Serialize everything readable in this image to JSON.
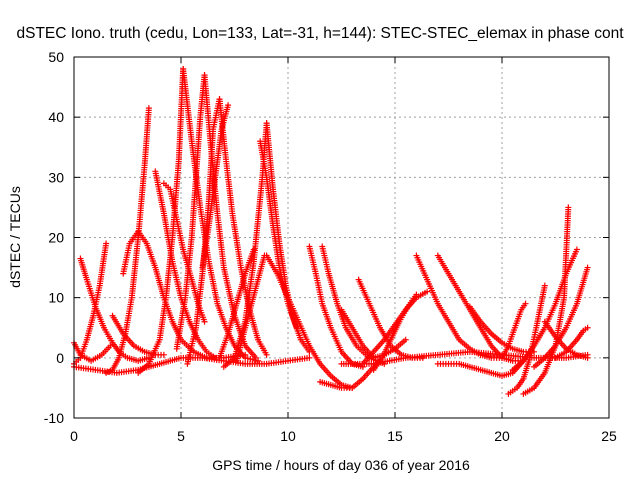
{
  "chart_data": {
    "type": "scatter",
    "title": "dSTEC Iono. truth (cedu, Lon=133, Lat=-31, h=144): STEC-STEC_elemax in phase cont",
    "xlabel": "GPS time / hours of day 036 of year 2016",
    "ylabel": "dSTEC  / TECUs",
    "xlim": [
      0,
      25
    ],
    "ylim": [
      -10,
      50
    ],
    "xticks": [
      "0",
      "5",
      "10",
      "15",
      "20",
      "25"
    ],
    "yticks": [
      "-10",
      "0",
      "10",
      "20",
      "30",
      "40",
      "50"
    ],
    "grid": true,
    "marker": "+",
    "color": "#ff0000",
    "series": [
      {
        "x": [
          0.0,
          0.3,
          0.8,
          1.3,
          1.7
        ],
        "y": [
          2.5,
          0.5,
          -0.5,
          0.5,
          2.0
        ]
      },
      {
        "x": [
          0.3,
          0.6,
          1.0,
          1.4,
          1.8,
          2.1,
          2.5,
          3.0,
          3.5
        ],
        "y": [
          16.5,
          13.0,
          8.5,
          5.0,
          2.5,
          1.0,
          0.0,
          -0.5,
          0.0
        ]
      },
      {
        "x": [
          0.0,
          0.3,
          0.6,
          0.9,
          1.2,
          1.5
        ],
        "y": [
          -1.0,
          0.0,
          3.0,
          7.0,
          12.0,
          19.0
        ]
      },
      {
        "x": [
          0.0,
          1.0,
          2.0,
          3.0,
          4.0,
          5.0,
          6.0,
          7.0,
          8.0,
          9.0,
          10.0,
          11.0
        ],
        "y": [
          -1.5,
          -2.0,
          -2.5,
          -2.0,
          -1.0,
          0.0,
          0.0,
          -0.5,
          -1.0,
          -1.0,
          -0.5,
          0.0
        ]
      },
      {
        "x": [
          1.5,
          1.8,
          2.1,
          2.4,
          2.7,
          3.0,
          3.3,
          3.5
        ],
        "y": [
          -2.5,
          -2.0,
          0.0,
          4.0,
          10.0,
          20.0,
          32.0,
          41.5
        ]
      },
      {
        "x": [
          1.8,
          2.3,
          2.8,
          3.3,
          3.8,
          4.2
        ],
        "y": [
          7.0,
          4.0,
          2.0,
          1.0,
          0.5,
          0.5
        ]
      },
      {
        "x": [
          2.3,
          2.6,
          3.0,
          3.4,
          3.8,
          4.2,
          4.6,
          5.0,
          5.6,
          6.2,
          7.0,
          8.0
        ],
        "y": [
          14.0,
          19.0,
          21.0,
          19.0,
          15.0,
          10.0,
          6.0,
          3.0,
          1.0,
          0.0,
          0.0,
          0.5
        ]
      },
      {
        "x": [
          3.8,
          4.2,
          4.6,
          5.0,
          5.4,
          5.8,
          6.2,
          6.6
        ],
        "y": [
          31.0,
          24.0,
          16.0,
          10.0,
          6.0,
          3.0,
          1.0,
          0.0
        ]
      },
      {
        "x": [
          3.0,
          3.5,
          4.0,
          4.3,
          4.6,
          4.9,
          5.1
        ],
        "y": [
          -2.5,
          -1.0,
          3.0,
          10.0,
          20.0,
          33.0,
          48.0
        ]
      },
      {
        "x": [
          5.1,
          5.5,
          5.9,
          6.3,
          6.7,
          7.1,
          7.5,
          8.0,
          8.6
        ],
        "y": [
          48.0,
          36.0,
          25.0,
          16.0,
          9.0,
          5.0,
          2.0,
          0.0,
          -0.5
        ]
      },
      {
        "x": [
          4.2,
          4.5,
          4.8,
          5.1,
          5.5,
          5.8,
          6.1
        ],
        "y": [
          29.0,
          28.0,
          23.0,
          18.0,
          13.0,
          9.0,
          6.0
        ]
      },
      {
        "x": [
          4.8,
          5.2,
          5.5,
          5.7,
          5.9,
          6.1
        ],
        "y": [
          1.5,
          10.0,
          20.0,
          30.0,
          40.0,
          47.0
        ]
      },
      {
        "x": [
          6.1,
          6.4,
          6.7,
          7.0,
          7.5,
          8.0,
          8.5
        ],
        "y": [
          47.0,
          35.0,
          24.0,
          15.0,
          7.0,
          2.0,
          0.0
        ]
      },
      {
        "x": [
          5.3,
          5.7,
          6.0,
          6.3,
          6.5,
          6.8
        ],
        "y": [
          -1.0,
          5.0,
          14.0,
          26.0,
          38.0,
          43.0
        ]
      },
      {
        "x": [
          6.8,
          7.1,
          7.4,
          7.8,
          8.2,
          8.6,
          9.0
        ],
        "y": [
          43.0,
          33.0,
          24.0,
          15.0,
          8.0,
          3.0,
          0.5
        ]
      },
      {
        "x": [
          6.0,
          6.3,
          6.6,
          6.9,
          7.2
        ],
        "y": [
          15.0,
          22.0,
          30.0,
          38.0,
          42.0
        ]
      },
      {
        "x": [
          7.0,
          7.5,
          8.0,
          8.4,
          8.8,
          9.0
        ],
        "y": [
          -1.5,
          0.0,
          6.0,
          16.0,
          30.0,
          39.0
        ]
      },
      {
        "x": [
          9.0,
          9.3,
          9.6,
          9.9,
          10.2,
          10.6,
          11.0
        ],
        "y": [
          39.0,
          28.0,
          19.0,
          12.0,
          7.0,
          3.0,
          1.0
        ]
      },
      {
        "x": [
          8.7,
          9.0,
          9.3,
          9.6,
          10.0,
          10.4
        ],
        "y": [
          36.0,
          30.0,
          22.0,
          15.0,
          9.0,
          5.0
        ]
      },
      {
        "x": [
          7.6,
          8.0,
          8.3,
          8.6,
          8.9
        ],
        "y": [
          -0.5,
          5.0,
          9.0,
          13.0,
          17.0
        ]
      },
      {
        "x": [
          6.8,
          7.2,
          7.6,
          8.0,
          8.4
        ],
        "y": [
          0.0,
          4.0,
          9.0,
          14.0,
          18.0
        ]
      },
      {
        "x": [
          9.0,
          9.5,
          10.0,
          10.5,
          11.0,
          11.5,
          12.0,
          12.5,
          13.0
        ],
        "y": [
          17.0,
          14.0,
          10.0,
          6.0,
          2.0,
          -1.0,
          -3.0,
          -4.5,
          -5.0
        ]
      },
      {
        "x": [
          11.0,
          11.3,
          11.6,
          12.0,
          12.5,
          13.0,
          13.5
        ],
        "y": [
          18.5,
          14.0,
          9.0,
          5.0,
          1.0,
          -1.0,
          -1.5
        ]
      },
      {
        "x": [
          11.6,
          11.9,
          12.3,
          12.7,
          13.2,
          13.8,
          14.5
        ],
        "y": [
          18.5,
          14.0,
          9.0,
          5.0,
          2.0,
          0.0,
          -1.0
        ]
      },
      {
        "x": [
          11.5,
          12.0,
          12.5,
          13.0,
          13.5,
          14.0,
          14.4
        ],
        "y": [
          -4.0,
          -4.5,
          -5.0,
          -5.0,
          -3.5,
          -1.5,
          0.0
        ]
      },
      {
        "x": [
          12.5,
          13.0,
          13.5,
          14.0,
          14.5,
          15.0,
          15.5
        ],
        "y": [
          8.0,
          5.0,
          2.0,
          0.0,
          0.5,
          1.5,
          3.0
        ]
      },
      {
        "x": [
          13.3,
          13.8,
          14.3,
          14.8,
          15.3,
          15.8,
          16.3
        ],
        "y": [
          13.0,
          9.0,
          5.0,
          2.0,
          0.5,
          0.0,
          0.0
        ]
      },
      {
        "x": [
          13.5,
          14.0,
          14.5,
          15.0,
          15.5,
          16.0,
          16.5
        ],
        "y": [
          -1.0,
          1.0,
          3.0,
          5.5,
          8.0,
          10.0,
          11.0
        ]
      },
      {
        "x": [
          14.0,
          14.4,
          14.8,
          15.2,
          15.6,
          16.0
        ],
        "y": [
          -2.0,
          0.0,
          3.0,
          6.0,
          8.5,
          10.5
        ]
      },
      {
        "x": [
          16.0,
          16.5,
          17.0,
          17.5,
          18.0,
          18.5,
          19.0,
          19.5,
          20.0
        ],
        "y": [
          17.0,
          13.0,
          9.0,
          6.0,
          3.0,
          1.5,
          0.5,
          0.0,
          0.0
        ]
      },
      {
        "x": [
          17.0,
          17.5,
          18.0,
          18.5,
          19.0,
          19.5,
          20.0,
          20.5,
          21.0
        ],
        "y": [
          17.0,
          14.0,
          11.0,
          8.0,
          5.0,
          2.0,
          0.0,
          -0.5,
          -0.5
        ]
      },
      {
        "x": [
          18.5,
          19.0,
          19.5,
          20.0,
          20.5,
          21.0,
          21.5
        ],
        "y": [
          8.5,
          6.0,
          4.0,
          2.5,
          1.5,
          1.0,
          1.0
        ]
      },
      {
        "x": [
          17.0,
          17.5,
          18.0,
          18.5,
          19.0,
          19.5,
          20.0,
          20.5,
          21.0
        ],
        "y": [
          -1.0,
          -1.0,
          -1.0,
          -1.5,
          -2.0,
          -2.5,
          -3.0,
          -2.5,
          -0.5
        ]
      },
      {
        "x": [
          12.5,
          14.0,
          15.5,
          17.0,
          18.5,
          20.0,
          21.5,
          23.0,
          24.0
        ],
        "y": [
          -1.0,
          -1.0,
          0.0,
          0.5,
          1.0,
          0.5,
          0.0,
          0.0,
          0.5
        ]
      },
      {
        "x": [
          20.0,
          20.3,
          20.6,
          20.9,
          21.1
        ],
        "y": [
          0.0,
          2.0,
          5.0,
          8.0,
          9.0
        ]
      },
      {
        "x": [
          20.3,
          20.7,
          21.0,
          21.3,
          21.6,
          22.0
        ],
        "y": [
          -6.0,
          -5.0,
          -3.5,
          0.0,
          5.0,
          12.0
        ]
      },
      {
        "x": [
          21.0,
          21.5,
          22.0,
          22.5,
          22.9,
          23.1
        ],
        "y": [
          -6.0,
          -5.0,
          -2.5,
          2.0,
          10.0,
          25.0
        ]
      },
      {
        "x": [
          20.5,
          21.0,
          21.5,
          22.0,
          22.5,
          23.0,
          23.5
        ],
        "y": [
          -2.0,
          -0.5,
          2.0,
          5.0,
          9.0,
          14.0,
          18.0
        ]
      },
      {
        "x": [
          21.5,
          22.0,
          22.5,
          23.0,
          23.5,
          24.0
        ],
        "y": [
          -1.5,
          0.0,
          2.0,
          5.0,
          9.0,
          15.0
        ]
      },
      {
        "x": [
          22.0,
          22.5,
          23.0,
          23.5,
          24.0
        ],
        "y": [
          6.0,
          3.5,
          1.5,
          0.5,
          0.0
        ]
      },
      {
        "x": [
          22.5,
          23.0,
          23.5,
          23.8,
          24.0
        ],
        "y": [
          0.0,
          1.0,
          3.0,
          4.5,
          5.0
        ]
      }
    ]
  }
}
